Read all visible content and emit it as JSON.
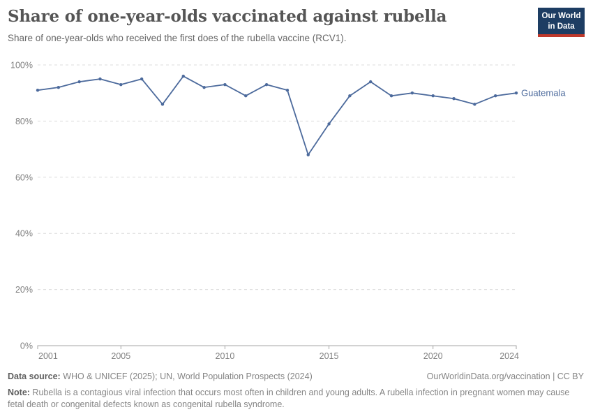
{
  "header": {
    "title": "Share of one-year-olds vaccinated against rubella",
    "subtitle": "Share of one-year-olds who received the first does of the rubella vaccine (RCV1).",
    "logo": {
      "line1": "Our World",
      "line2": "in Data"
    }
  },
  "chart_data": {
    "type": "line",
    "title": "Share of one-year-olds vaccinated against rubella",
    "xlabel": "",
    "ylabel": "",
    "xlim": [
      2001,
      2024
    ],
    "ylim": [
      0,
      100
    ],
    "xticks": [
      2001,
      2005,
      2010,
      2015,
      2020,
      2024
    ],
    "yticks": [
      0,
      20,
      40,
      60,
      80,
      100
    ],
    "ytick_suffix": "%",
    "grid": true,
    "legend": "line-end-label",
    "series": [
      {
        "name": "Guatemala",
        "color": "#4c6a9c",
        "x": [
          2001,
          2002,
          2003,
          2004,
          2005,
          2006,
          2007,
          2008,
          2009,
          2010,
          2011,
          2012,
          2013,
          2014,
          2015,
          2016,
          2017,
          2018,
          2019,
          2020,
          2021,
          2022,
          2023,
          2024
        ],
        "values": [
          91,
          92,
          94,
          95,
          93,
          95,
          86,
          96,
          92,
          93,
          89,
          93,
          91,
          68,
          79,
          89,
          94,
          89,
          90,
          89,
          88,
          86,
          89,
          90
        ]
      }
    ]
  },
  "footer": {
    "datasource_label": "Data source:",
    "datasource": " WHO & UNICEF (2025); UN, World Population Prospects (2024)",
    "rights": "OurWorldinData.org/vaccination | CC BY",
    "note_label": "Note:",
    "note": " Rubella is a contagious viral infection that occurs most often in children and young adults. A rubella infection in pregnant women may cause fetal death or congenital defects known as congenital rubella syndrome."
  },
  "colors": {
    "accent_blue": "#4c6a9c",
    "logo_navy": "#1d3d63",
    "logo_red": "#c0392b",
    "gridline": "#dcdcdc",
    "axis": "#a5a5a5"
  }
}
